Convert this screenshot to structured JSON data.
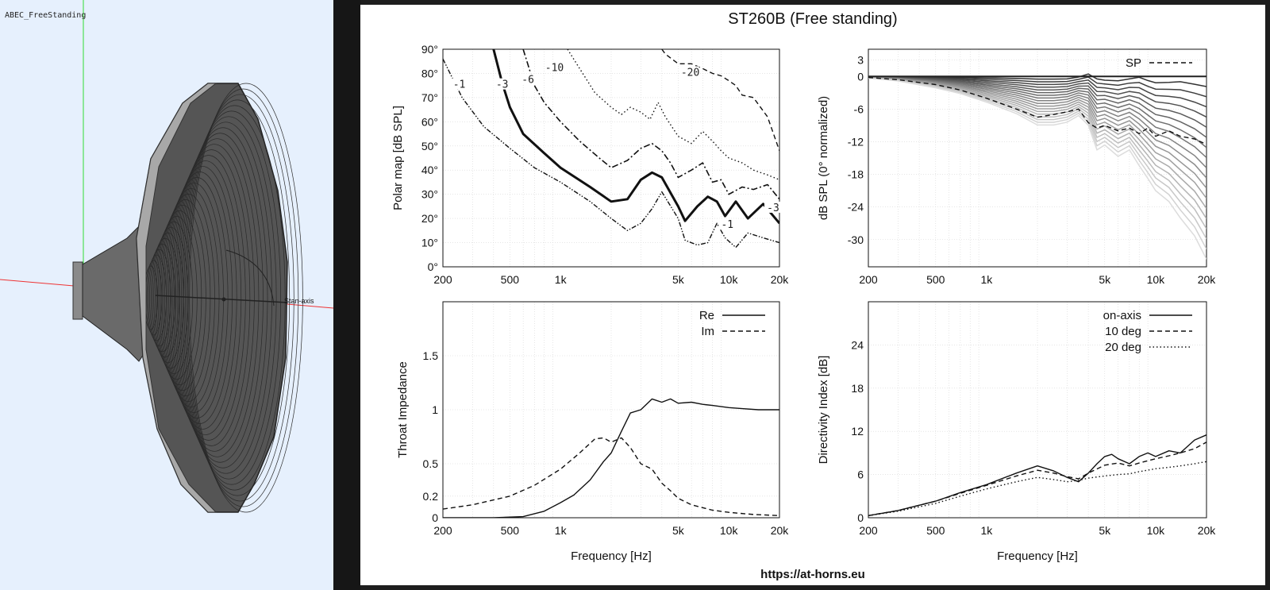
{
  "viewport": {
    "title": "ABEC_FreeStanding",
    "axis_label": "Stan-axis"
  },
  "figure": {
    "title": "ST260B (Free standing)",
    "footer": "https://at-horns.eu"
  },
  "chart_data": [
    {
      "id": "polar",
      "type": "line",
      "ylabel": "Polar map [dB SPL]",
      "xlabel": "",
      "xscale": "log",
      "xlim": [
        200,
        20000
      ],
      "ylim": [
        0,
        90
      ],
      "xticks": [
        200,
        500,
        1000,
        5000,
        10000,
        20000
      ],
      "xticklabels": [
        "200",
        "500",
        "1k",
        "5k",
        "10k",
        "20k"
      ],
      "yticks": [
        0,
        10,
        20,
        30,
        40,
        50,
        60,
        70,
        80,
        90
      ],
      "yticklabels": [
        "0°",
        "10°",
        "20°",
        "30°",
        "40°",
        "50°",
        "60°",
        "70°",
        "80°",
        "90°"
      ],
      "grid": true,
      "series": [
        {
          "name": "-1",
          "style": "dashdotdot",
          "width": 1.4,
          "x": [
            200,
            260,
            350,
            500,
            700,
            1000,
            1500,
            2000,
            2500,
            3000,
            3500,
            4000,
            5000,
            5500,
            6500,
            7500,
            8500,
            9500,
            11000,
            13000,
            16000,
            20000
          ],
          "y": [
            86,
            70,
            58,
            49,
            41,
            35,
            27,
            20,
            15,
            18,
            24,
            31,
            20,
            11,
            9,
            10,
            18,
            12,
            8,
            14,
            12,
            10
          ]
        },
        {
          "name": "-3",
          "style": "solid",
          "width": 3,
          "x": [
            400,
            450,
            500,
            600,
            800,
            1000,
            1500,
            2000,
            2500,
            3000,
            3500,
            4000,
            5000,
            5500,
            6500,
            7500,
            8500,
            9500,
            11000,
            13000,
            16000,
            20000
          ],
          "y": [
            90,
            76,
            66,
            55,
            47,
            41,
            33,
            27,
            28,
            36,
            39,
            37,
            25,
            19,
            25,
            29,
            27,
            21,
            27,
            20,
            26,
            18
          ]
        },
        {
          "name": "-6",
          "style": "dashdot",
          "width": 1.6,
          "x": [
            600,
            700,
            800,
            1000,
            1300,
            1700,
            2000,
            2500,
            3000,
            3500,
            4000,
            4500,
            5000,
            6000,
            7000,
            8000,
            9000,
            10000,
            12000,
            14000,
            17000,
            20000
          ],
          "y": [
            90,
            75,
            68,
            60,
            52,
            45,
            41,
            44,
            49,
            51,
            48,
            43,
            37,
            40,
            43,
            35,
            36,
            30,
            33,
            32,
            34,
            28
          ]
        },
        {
          "name": "-10",
          "style": "dotted",
          "width": 1.4,
          "x": [
            1100,
            1300,
            1600,
            2000,
            2300,
            2600,
            3000,
            3400,
            3800,
            4200,
            5000,
            6000,
            7000,
            8000,
            9000,
            10000,
            12000,
            14000,
            17000,
            20000
          ],
          "y": [
            90,
            82,
            72,
            66,
            63,
            66,
            64,
            61,
            68,
            62,
            54,
            51,
            56,
            52,
            48,
            45,
            43,
            40,
            38,
            36
          ]
        },
        {
          "name": "-20",
          "style": "dashed",
          "width": 1.4,
          "x": [
            4000,
            4200,
            5000,
            6000,
            7000,
            8000,
            9000,
            10000,
            11000,
            12000,
            14000,
            17000,
            20000
          ],
          "y": [
            90,
            88,
            84,
            84,
            82,
            80,
            79,
            77,
            75,
            71,
            70,
            62,
            48
          ]
        }
      ],
      "contour_labels": [
        {
          "text": "-1",
          "x": 250,
          "y": 75
        },
        {
          "text": "-3",
          "x": 450,
          "y": 75
        },
        {
          "text": "-6",
          "x": 640,
          "y": 77
        },
        {
          "text": "-10",
          "x": 920,
          "y": 82
        },
        {
          "text": "-20",
          "x": 5900,
          "y": 80
        },
        {
          "text": "-1",
          "x": 9800,
          "y": 17
        },
        {
          "text": "-3",
          "x": 20000,
          "y": 24
        }
      ]
    },
    {
      "id": "spl",
      "type": "line",
      "ylabel": "dB SPL (0° normalized)",
      "xlabel": "",
      "xscale": "log",
      "xlim": [
        200,
        20000
      ],
      "ylim": [
        -35,
        5
      ],
      "xticks": [
        200,
        500,
        1000,
        5000,
        10000,
        20000
      ],
      "xticklabels": [
        "200",
        "500",
        "1k",
        "5k",
        "10k",
        "20k"
      ],
      "yticks": [
        3,
        0,
        -6,
        -12,
        -18,
        -24,
        -30
      ],
      "yticklabels": [
        "3",
        "0",
        "-6",
        "-12",
        "-18",
        "-24",
        "-30"
      ],
      "grid": true,
      "legend": "top-right",
      "family": {
        "count": 18,
        "x": [
          200,
          300,
          500,
          700,
          1000,
          1500,
          2000,
          2500,
          3000,
          3500,
          4000,
          4500,
          5000,
          6000,
          7000,
          8000,
          9000,
          10000,
          12000,
          14000,
          17000,
          20000
        ],
        "shape": [
          0.3,
          0.8,
          2,
          3,
          4.5,
          6.5,
          8.5,
          8.5,
          8,
          7,
          9,
          13,
          12,
          14,
          13,
          16,
          18,
          20,
          22,
          25,
          28,
          32
        ],
        "bumps": [
          0,
          0,
          0,
          0,
          0,
          0,
          0,
          0,
          0,
          0.3,
          1,
          0.3,
          0,
          0,
          0.3,
          0.8,
          0.3,
          0,
          0.2,
          0.5,
          0.2,
          0
        ]
      },
      "series": [
        {
          "name": "SP",
          "style": "dashed",
          "x": [
            200,
            300,
            500,
            700,
            1000,
            1500,
            2000,
            2500,
            3000,
            3500,
            4000,
            4500,
            5000,
            6000,
            7000,
            8000,
            9000,
            10000,
            12000,
            14000,
            17000,
            20000
          ],
          "y": [
            -0.2,
            -0.6,
            -1.5,
            -2.5,
            -4,
            -6,
            -7.5,
            -7,
            -6.5,
            -6,
            -8.5,
            -9.5,
            -9,
            -10,
            -9.5,
            -10.5,
            -9.5,
            -11,
            -10,
            -11,
            -11.5,
            -12.5
          ]
        }
      ]
    },
    {
      "id": "impedance",
      "type": "line",
      "ylabel": "Throat Impedance",
      "xlabel": "Frequency [Hz]",
      "xscale": "log",
      "xlim": [
        200,
        20000
      ],
      "ylim": [
        0,
        2
      ],
      "xticks": [
        200,
        500,
        1000,
        5000,
        10000,
        20000
      ],
      "xticklabels": [
        "200",
        "500",
        "1k",
        "5k",
        "10k",
        "20k"
      ],
      "yticks": [
        0,
        0.2,
        0.5,
        1,
        1.5
      ],
      "yticklabels": [
        "0",
        "0.2",
        "0.5",
        "1",
        "1.5"
      ],
      "grid": true,
      "legend": "top-right",
      "series": [
        {
          "name": "Re",
          "style": "solid",
          "x": [
            200,
            400,
            600,
            800,
            1000,
            1200,
            1500,
            1800,
            2000,
            2300,
            2600,
            3000,
            3500,
            4000,
            4500,
            5000,
            6000,
            7000,
            8000,
            10000,
            12000,
            15000,
            20000
          ],
          "y": [
            0,
            0,
            0.01,
            0.06,
            0.14,
            0.21,
            0.35,
            0.52,
            0.6,
            0.8,
            0.97,
            1.0,
            1.1,
            1.07,
            1.1,
            1.06,
            1.07,
            1.05,
            1.04,
            1.02,
            1.01,
            1.0,
            1.0
          ]
        },
        {
          "name": "Im",
          "style": "dashed",
          "x": [
            200,
            300,
            500,
            700,
            1000,
            1300,
            1600,
            1800,
            2000,
            2300,
            2600,
            3000,
            3500,
            4000,
            4500,
            5000,
            6000,
            8000,
            10000,
            14000,
            20000
          ],
          "y": [
            0.08,
            0.12,
            0.2,
            0.3,
            0.45,
            0.6,
            0.73,
            0.74,
            0.7,
            0.74,
            0.65,
            0.5,
            0.45,
            0.32,
            0.25,
            0.18,
            0.12,
            0.07,
            0.05,
            0.03,
            0.02
          ]
        }
      ]
    },
    {
      "id": "di",
      "type": "line",
      "ylabel": "Directivity Index [dB]",
      "xlabel": "Frequency [Hz]",
      "xscale": "log",
      "xlim": [
        200,
        20000
      ],
      "ylim": [
        0,
        30
      ],
      "xticks": [
        200,
        500,
        1000,
        5000,
        10000,
        20000
      ],
      "xticklabels": [
        "200",
        "500",
        "1k",
        "5k",
        "10k",
        "20k"
      ],
      "yticks": [
        0,
        6,
        12,
        18,
        24
      ],
      "yticklabels": [
        "0",
        "6",
        "12",
        "18",
        "24"
      ],
      "grid": true,
      "legend": "top-right",
      "series": [
        {
          "name": "on-axis",
          "style": "solid",
          "x": [
            200,
            300,
            500,
            700,
            1000,
            1500,
            2000,
            2500,
            3000,
            3500,
            4000,
            4500,
            5000,
            5500,
            6000,
            7000,
            8000,
            9000,
            10000,
            12000,
            14000,
            17000,
            20000
          ],
          "y": [
            0.3,
            1,
            2.3,
            3.5,
            4.6,
            6.2,
            7.2,
            6.5,
            5.6,
            5,
            6.2,
            7.5,
            8.5,
            8.8,
            8.2,
            7.5,
            8.5,
            9,
            8.5,
            9.3,
            9,
            10.8,
            11.5
          ]
        },
        {
          "name": "10 deg",
          "style": "dashed",
          "x": [
            200,
            300,
            500,
            700,
            1000,
            1500,
            2000,
            2500,
            3000,
            3500,
            4000,
            5000,
            6000,
            7000,
            8000,
            10000,
            12000,
            14000,
            17000,
            20000
          ],
          "y": [
            0.3,
            1,
            2.3,
            3.4,
            4.5,
            5.8,
            6.6,
            6.2,
            5.7,
            5.4,
            6.2,
            7.3,
            7.6,
            7.2,
            7.6,
            8.2,
            8.6,
            9,
            9.6,
            10.5
          ]
        },
        {
          "name": "20 deg",
          "style": "dotted",
          "x": [
            200,
            300,
            500,
            700,
            1000,
            1500,
            2000,
            2500,
            3000,
            3500,
            4000,
            5000,
            6000,
            7000,
            8000,
            10000,
            12000,
            14000,
            17000,
            20000
          ],
          "y": [
            0.3,
            0.9,
            2,
            3,
            4,
            5,
            5.6,
            5.3,
            5,
            5.2,
            5.5,
            5.8,
            6,
            6.1,
            6.4,
            6.8,
            7,
            7.2,
            7.5,
            7.8
          ]
        }
      ]
    }
  ]
}
